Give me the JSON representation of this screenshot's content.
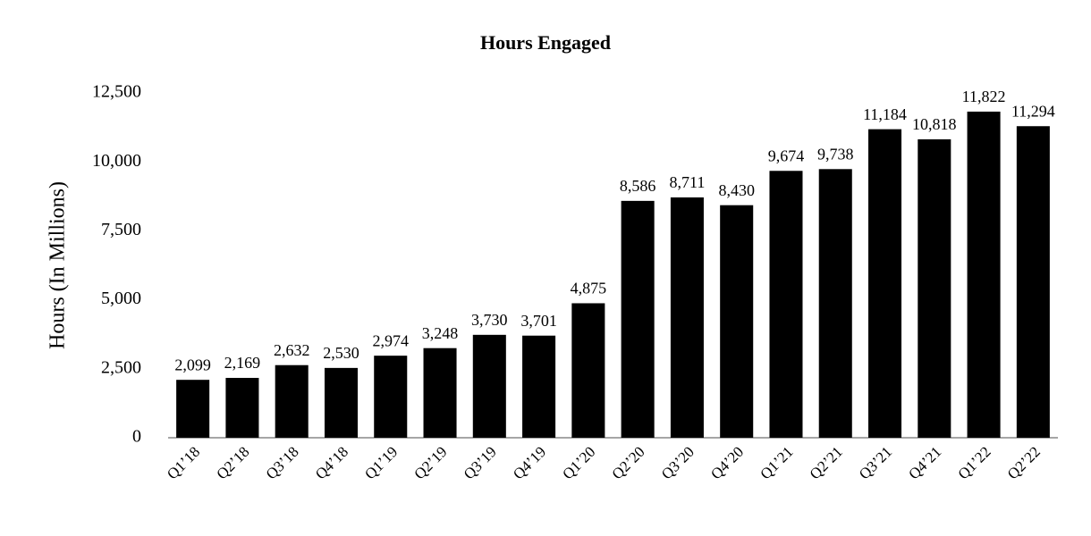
{
  "chart_data": {
    "type": "bar",
    "title": "Hours Engaged",
    "y_label": "Hours (In Millions)",
    "categories": [
      "Q1’18",
      "Q2’18",
      "Q3’18",
      "Q4’18",
      "Q1’19",
      "Q2’19",
      "Q3’19",
      "Q4’19",
      "Q1’20",
      "Q2’20",
      "Q3’20",
      "Q4’20",
      "Q1’21",
      "Q2’21",
      "Q3’21",
      "Q4’21",
      "Q1’22",
      "Q2’22"
    ],
    "values": [
      2099,
      2169,
      2632,
      2530,
      2974,
      3248,
      3730,
      3701,
      4875,
      8586,
      8711,
      8430,
      9674,
      9738,
      11184,
      10818,
      11822,
      11294
    ],
    "value_labels": [
      "2,099",
      "2,169",
      "2,632",
      "2,530",
      "2,974",
      "3,248",
      "3,730",
      "3,701",
      "4,875",
      "8,586",
      "8,711",
      "8,430",
      "9,674",
      "9,738",
      "11,184",
      "10,818",
      "11,822",
      "11,294"
    ],
    "color": "#000000",
    "ylim": [
      0,
      12500
    ],
    "yticks": [
      0,
      {
        "value": 2500,
        "label": "2,500"
      },
      {
        "value": 5000,
        "label": "5,000"
      },
      {
        "value": 7500,
        "label": "7,500"
      },
      {
        "value": 10000,
        "label": "10,000"
      },
      {
        "value": 12500,
        "label": "12,500"
      }
    ],
    "grid": false
  }
}
